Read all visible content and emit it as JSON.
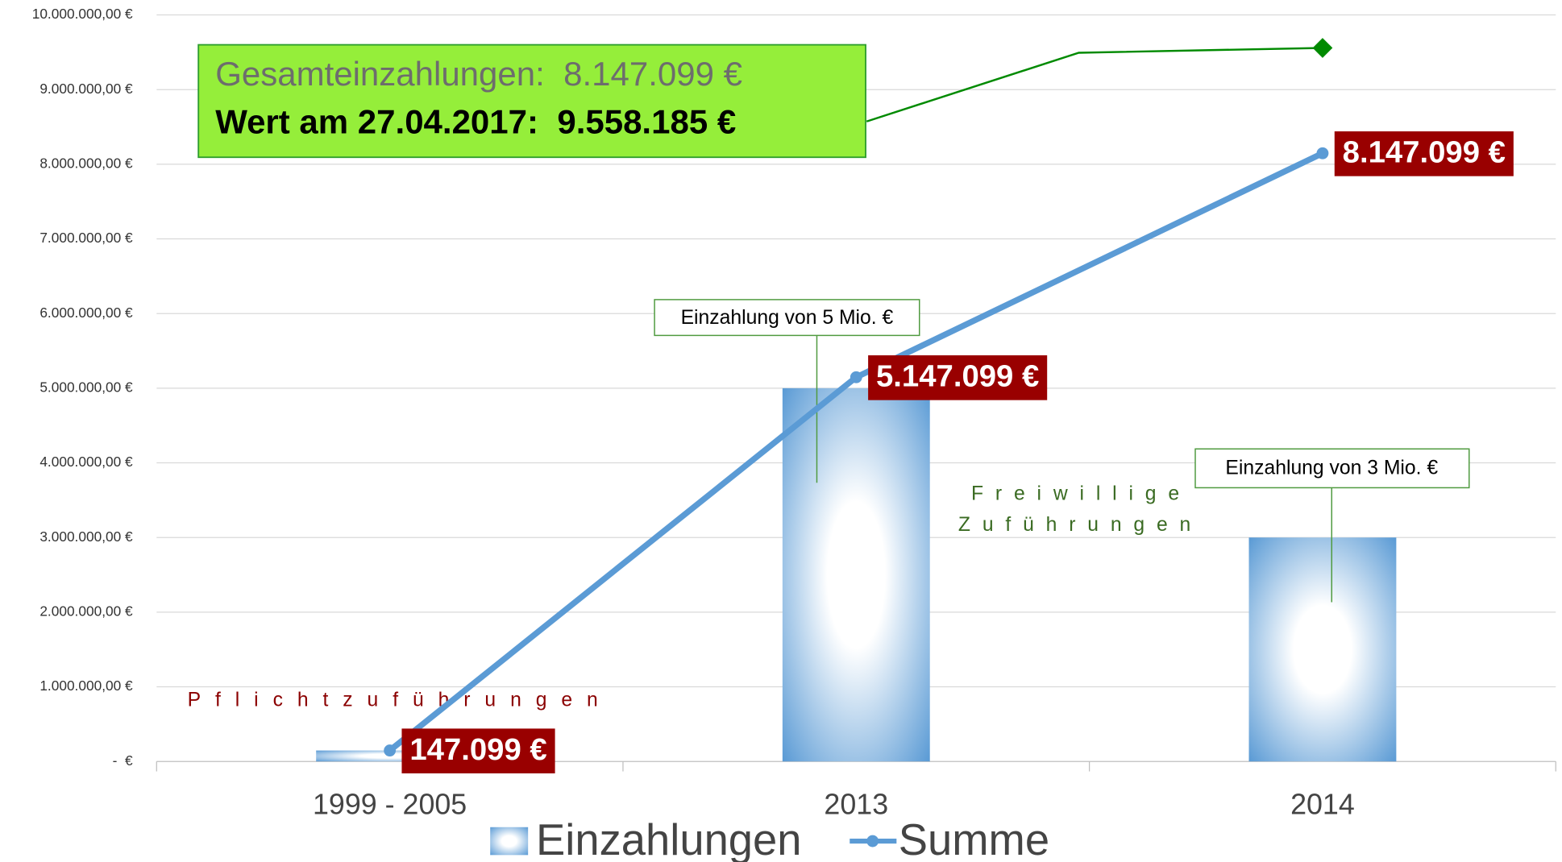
{
  "chart_data": {
    "type": "bar_line",
    "categories": [
      "1999 - 2005",
      "2013",
      "2014"
    ],
    "series": [
      {
        "name": "Einzahlungen",
        "type": "bar",
        "color": "#5b9bd5",
        "values": [
          147099,
          5000000,
          3000000
        ]
      },
      {
        "name": "Summe",
        "type": "line",
        "color": "#5b9bd5",
        "values": [
          147099,
          5147099,
          8147099
        ],
        "value_labels": [
          "147.099 €",
          "5.147.099 €",
          "8.147.099 €"
        ],
        "label_color": "#990000"
      }
    ],
    "ylim": [
      0,
      10000000
    ],
    "yticks": [
      {
        "value": 0,
        "label": "-  €"
      },
      {
        "value": 1000000,
        "label": "1.000.000,00 €"
      },
      {
        "value": 2000000,
        "label": "2.000.000,00 €"
      },
      {
        "value": 3000000,
        "label": "3.000.000,00 €"
      },
      {
        "value": 4000000,
        "label": "4.000.000,00 €"
      },
      {
        "value": 5000000,
        "label": "5.000.000,00 €"
      },
      {
        "value": 6000000,
        "label": "6.000.000,00 €"
      },
      {
        "value": 7000000,
        "label": "7.000.000,00 €"
      },
      {
        "value": 8000000,
        "label": "8.000.000,00 €"
      },
      {
        "value": 9000000,
        "label": "9.000.000,00 €"
      },
      {
        "value": 10000000,
        "label": "10.000.000,00 €"
      }
    ],
    "grid": true,
    "legend": "bottom",
    "summary_box": {
      "line1": "Gesamteinzahlungen:  8.147.099 €",
      "line2": "Wert am 27.04.2017:  9.558.185 €",
      "marker_value": 9558185,
      "color": "#008a00"
    },
    "annotations": {
      "callout_2013": "Einzahlung von 5 Mio. €",
      "callout_2014": "Einzahlung von 3 Mio. €",
      "pflicht": "Pflichtzuführungen",
      "freiwillige_1": "Freiwillige",
      "freiwillige_2": "Zuführungen"
    }
  }
}
